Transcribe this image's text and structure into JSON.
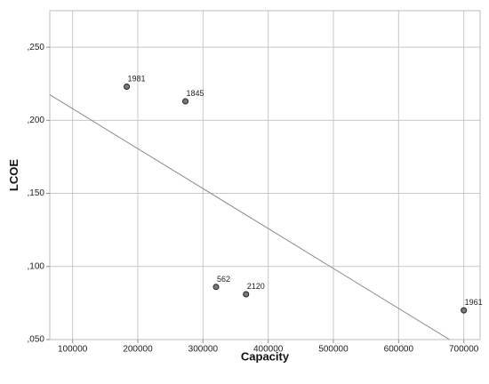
{
  "chart_data": {
    "type": "scatter",
    "xlabel": "Capacity",
    "ylabel": "LCOE",
    "xlim": [
      65000,
      725000
    ],
    "ylim": [
      0.05,
      0.275
    ],
    "x_ticks": [
      100000,
      200000,
      300000,
      400000,
      500000,
      600000,
      700000
    ],
    "x_tick_labels": [
      "100000",
      "200000",
      "300000",
      "400000",
      "500000",
      "600000",
      "700000"
    ],
    "y_ticks": [
      0.05,
      0.1,
      0.15,
      0.2,
      0.25
    ],
    "y_tick_labels": [
      ",050",
      ",100",
      ",150",
      ",200",
      ",250"
    ],
    "grid": true,
    "points": [
      {
        "label": "1981",
        "x": 183000,
        "y": 0.223
      },
      {
        "label": "1845",
        "x": 273000,
        "y": 0.213
      },
      {
        "label": "562",
        "x": 320000,
        "y": 0.086
      },
      {
        "label": "2120",
        "x": 366000,
        "y": 0.081
      },
      {
        "label": "1961",
        "x": 700000,
        "y": 0.07
      }
    ],
    "fit_line": {
      "x": [
        65000,
        678000
      ],
      "y": [
        0.2175,
        0.05
      ]
    }
  }
}
